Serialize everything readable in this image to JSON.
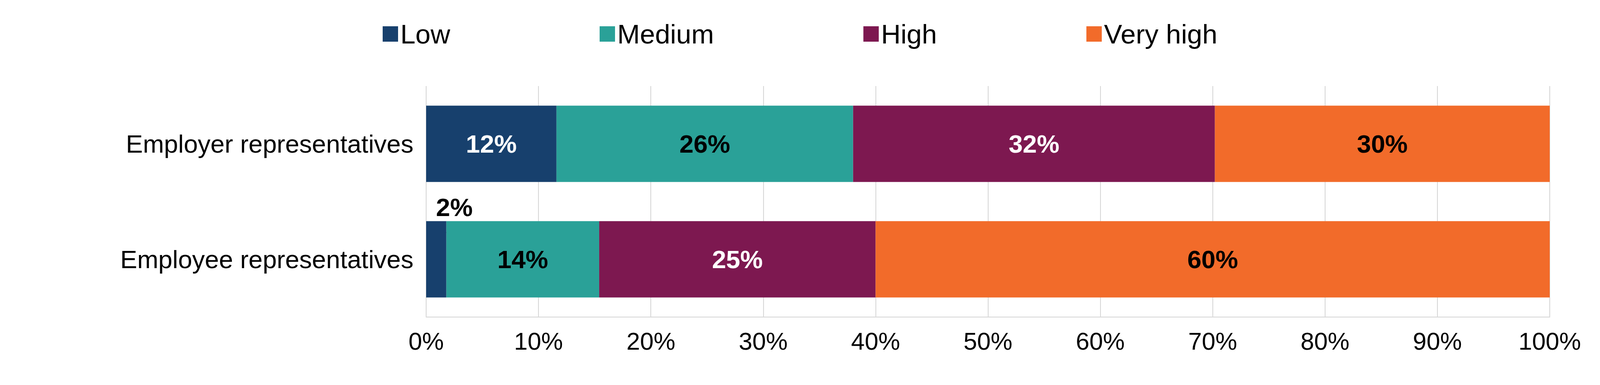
{
  "chart_data": {
    "type": "bar",
    "orientation": "horizontal",
    "stacked": true,
    "data_labels": true,
    "grid": true,
    "legend": "top",
    "categories": [
      "Employer representatives",
      "Employee representatives"
    ],
    "series": [
      {
        "name": "Low",
        "color": "#17406d",
        "values": [
          11.6,
          1.8
        ],
        "value_labels": [
          "12%",
          "2%"
        ]
      },
      {
        "name": "Medium",
        "color": "#2aa198",
        "values": [
          26.4,
          13.6
        ],
        "value_labels": [
          "26%",
          "14%"
        ]
      },
      {
        "name": "High",
        "color": "#7d1850",
        "values": [
          32.2,
          24.6
        ],
        "value_labels": [
          "32%",
          "25%"
        ]
      },
      {
        "name": "Very high",
        "color": "#f26b2a",
        "values": [
          29.8,
          60.0
        ],
        "value_labels": [
          "30%",
          "60%"
        ]
      }
    ],
    "xlim": [
      0,
      100
    ],
    "xticks": [
      {
        "value": 0,
        "label": "0%"
      },
      {
        "value": 10,
        "label": "10%"
      },
      {
        "value": 20,
        "label": "20%"
      },
      {
        "value": 30,
        "label": "30%"
      },
      {
        "value": 40,
        "label": "40%"
      },
      {
        "value": 50,
        "label": "50%"
      },
      {
        "value": 60,
        "label": "60%"
      },
      {
        "value": 70,
        "label": "70%"
      },
      {
        "value": 80,
        "label": "80%"
      },
      {
        "value": 90,
        "label": "90%"
      },
      {
        "value": 100,
        "label": "100%"
      }
    ]
  }
}
